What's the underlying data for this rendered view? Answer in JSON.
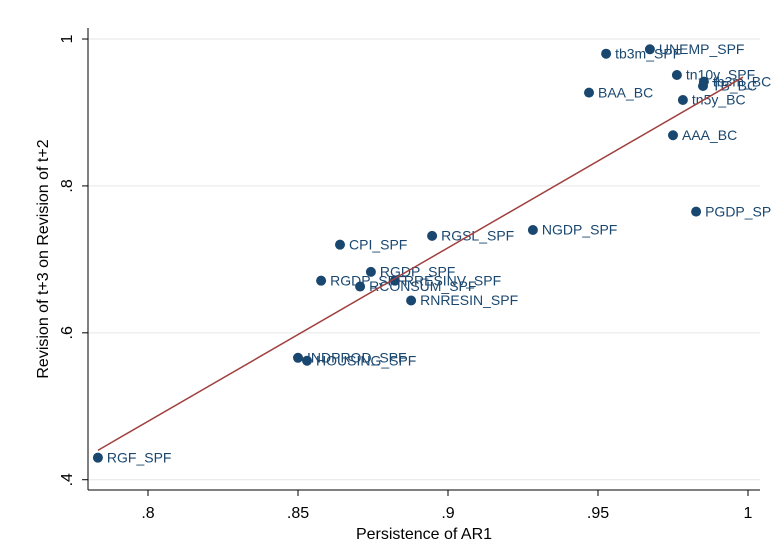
{
  "chart_data": {
    "type": "scatter",
    "x_label": "Persistence of AR1",
    "y_label": "Revision of t+3 on Revision of t+2",
    "xlim": [
      0.78,
      1.004
    ],
    "ylim": [
      0.386,
      1.015
    ],
    "xticks": [
      {
        "value": 0.8,
        "label": ".8"
      },
      {
        "value": 0.85,
        "label": ".85"
      },
      {
        "value": 0.9,
        "label": ".9"
      },
      {
        "value": 0.95,
        "label": ".95"
      },
      1
    ],
    "yticks": [
      {
        "value": 0.4,
        "label": ".4"
      },
      {
        "value": 0.6,
        "label": ".6"
      },
      {
        "value": 0.8,
        "label": ".8"
      },
      1
    ],
    "grid": true,
    "color": "#1a476f",
    "x": [
      0.7833,
      0.853,
      0.85,
      0.8877,
      0.8707,
      0.8577,
      0.8823,
      0.8743,
      0.864,
      0.8947,
      0.9283,
      0.9827,
      0.975,
      0.9783,
      0.947,
      0.9527,
      0.9673,
      0.9763,
      0.9853,
      0.985
    ],
    "values": [
      0.43,
      0.562,
      0.566,
      0.644,
      0.663,
      0.671,
      0.671,
      0.683,
      0.72,
      0.732,
      0.74,
      0.765,
      0.869,
      0.917,
      0.927,
      0.98,
      0.986,
      0.951,
      0.942,
      0.936
    ],
    "point_labels": [
      "RGF_SPF",
      "HOUSING_SPF",
      "INDPROD_SPF",
      "RNRESIN_SPF",
      "RCONSUM_SPF",
      "RGDP_SPF",
      "RRESINV_SPF",
      "RGDP_SPF",
      "CPI_SPF",
      "RGSL_SPF",
      "NGDP_SPF",
      "PGDP_SPF",
      "AAA_BC",
      "tn5y_BC",
      "BAA_BC",
      "tb3m_SPF",
      "UNEMP_SPF",
      "tn10y_SPF",
      "tb3m_BC",
      "TB_BC"
    ],
    "fit": {
      "color": "#a0403f",
      "x": [
        0.7833,
        0.9983
      ],
      "values": [
        0.44,
        0.948
      ]
    }
  }
}
